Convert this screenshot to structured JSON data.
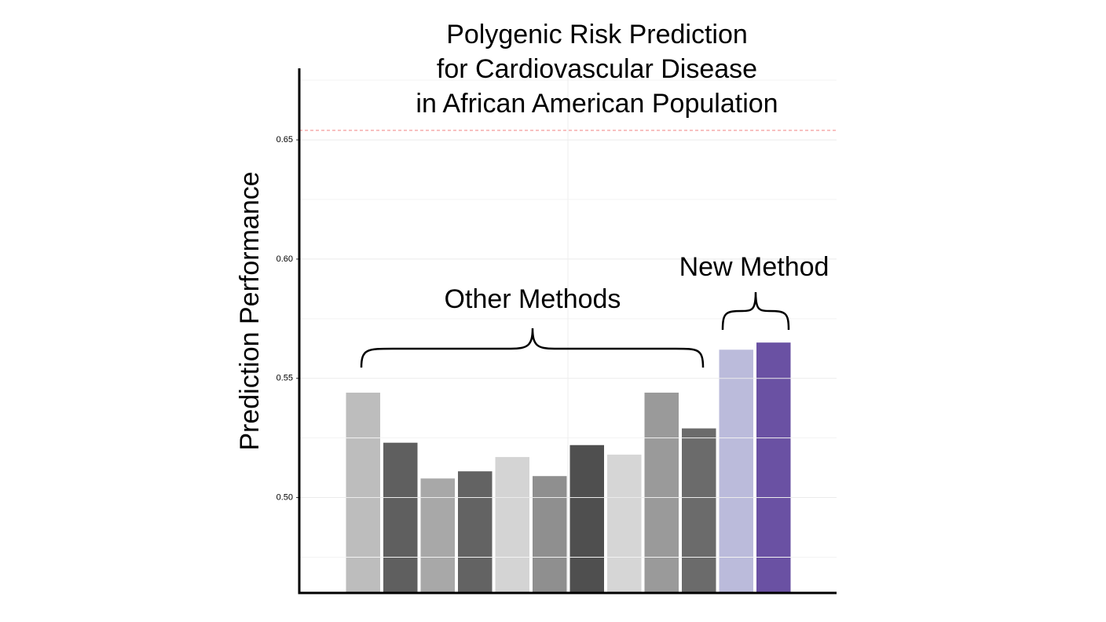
{
  "chart_data": {
    "type": "bar",
    "title": [
      "Polygenic Risk Prediction",
      "for Cardiovascular Disease",
      "in African American Population"
    ],
    "y_label": "Prediction Performance",
    "categories": [
      null,
      null,
      null,
      null,
      null,
      null,
      null,
      null,
      null,
      null,
      null,
      null
    ],
    "values": [
      0.544,
      0.523,
      0.508,
      0.511,
      0.517,
      0.509,
      0.522,
      0.518,
      0.544,
      0.529,
      0.562,
      0.565
    ],
    "colors": [
      "#bdbdbd",
      "#5f5f5f",
      "#a8a8a8",
      "#636363",
      "#d4d4d4",
      "#8f8f8f",
      "#4f4f4f",
      "#d6d6d6",
      "#9a9a9a",
      "#6b6b6b",
      "#bbbbdb",
      "#6a51a3"
    ],
    "ylim": [
      0.46,
      0.68
    ],
    "yticks": [
      {
        "value": 0.5,
        "label": "0.50"
      },
      0.55,
      {
        "value": 0.6,
        "label": "0.60"
      },
      0.65
    ],
    "grid": true,
    "reference_line": 0.654,
    "reference_color": "#f08080",
    "annotations": [
      "Other Methods",
      "New Method"
    ]
  }
}
